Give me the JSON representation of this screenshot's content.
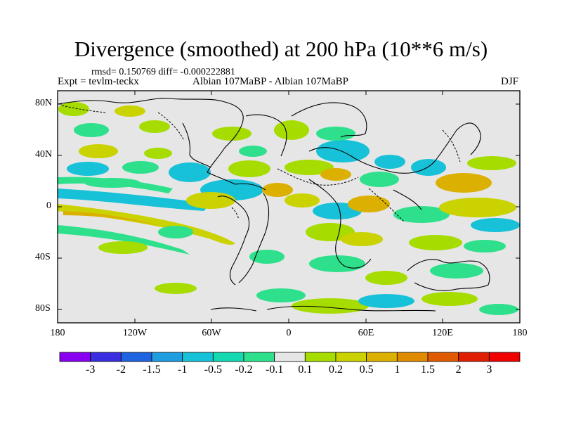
{
  "title": "Divergence (smoothed) at 200 hPa (10**6 m/s)",
  "stats": "rmsd= 0.150769 diff= -0.000222881",
  "experiment": "Expt = tevlm-teckx",
  "case": "Albian   107MaBP - Albian   107MaBP",
  "season": "DJF",
  "lat_labels": [
    "80N",
    "40N",
    "0",
    "40S",
    "80S"
  ],
  "lon_labels": [
    "180",
    "120W",
    "60W",
    "0",
    "60E",
    "120E",
    "180"
  ],
  "colorbar": {
    "labels": [
      "-3",
      "-2",
      "-1.5",
      "-1",
      "-0.5",
      "-0.2",
      "-0.1",
      "0.1",
      "0.2",
      "0.5",
      "1",
      "1.5",
      "2",
      "3"
    ],
    "colors": [
      "#8a00f0",
      "#3a2ee0",
      "#1e64e0",
      "#1e9de0",
      "#17c2d8",
      "#14d8b0",
      "#2ee08c",
      "#e6e6e6",
      "#a6dc00",
      "#cad200",
      "#dcb000",
      "#e08a00",
      "#e05a00",
      "#e01e00",
      "#f00000"
    ]
  },
  "map_colors": {
    "background": "#e6e6e6",
    "land_outline": "#000000"
  }
}
